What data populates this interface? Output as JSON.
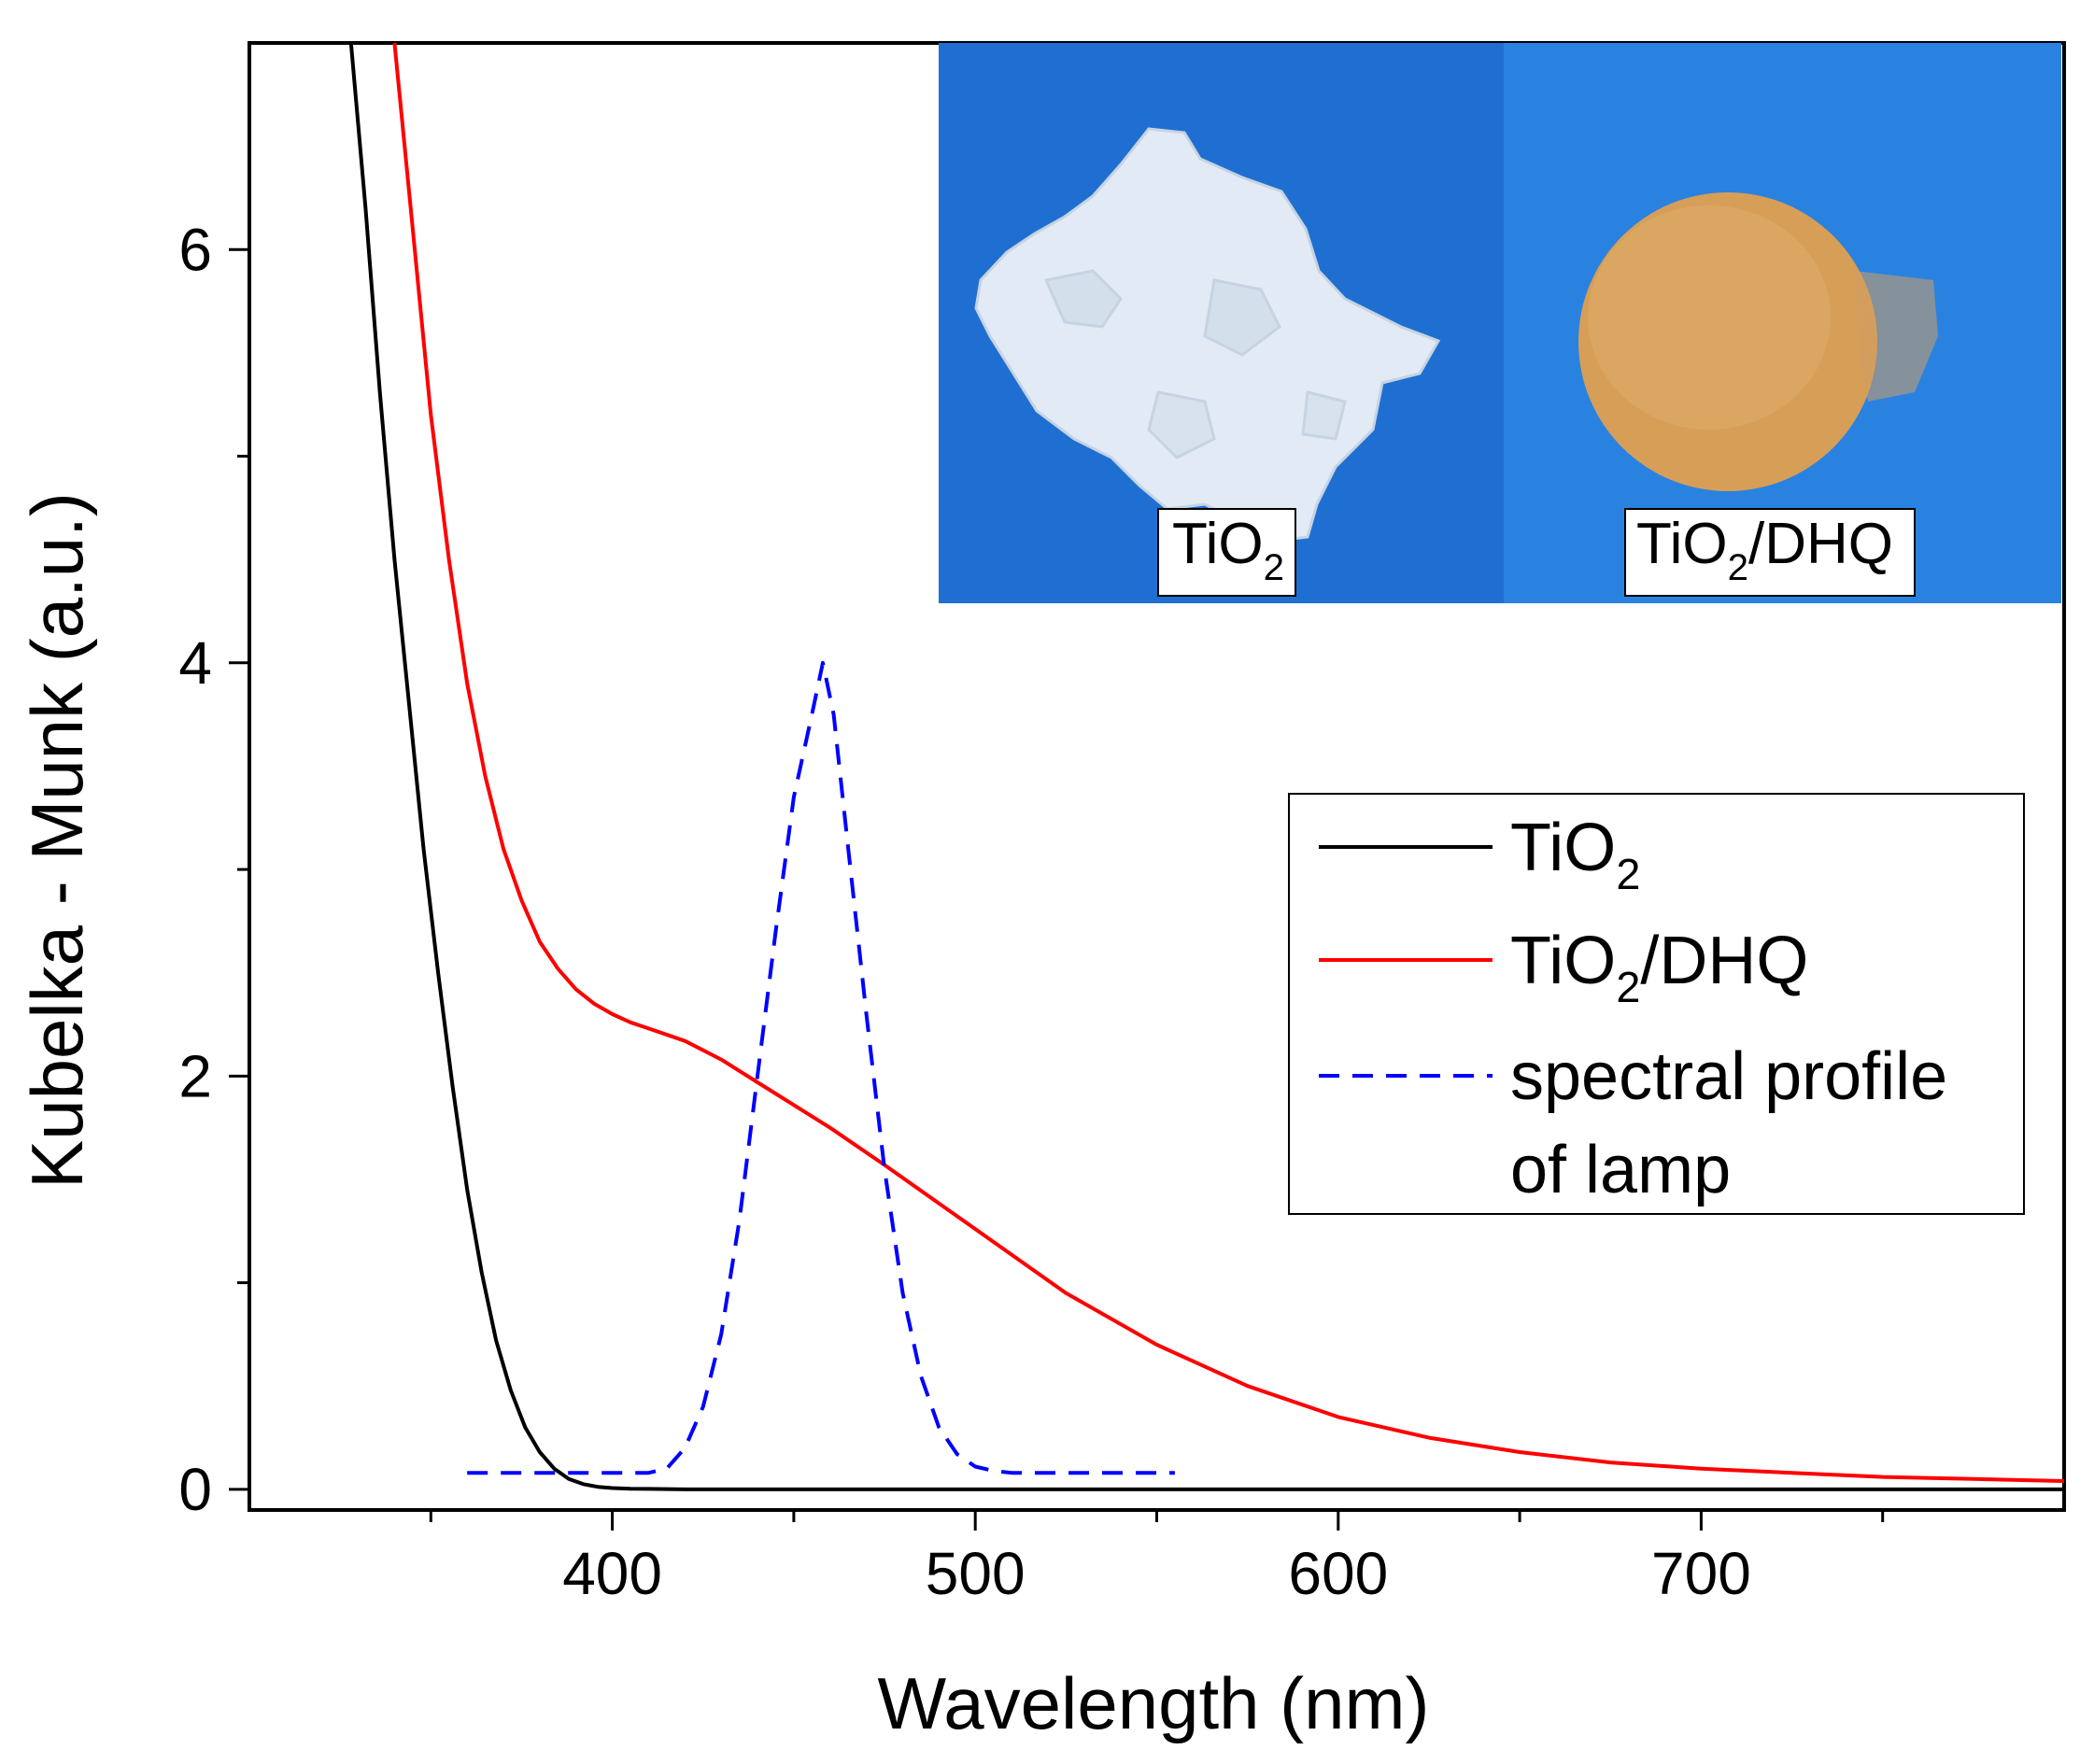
{
  "chart_data": {
    "type": "line",
    "xlabel": "Wavelength (nm)",
    "ylabel": "Kubelka - Munk (a.u.)",
    "xlim": [
      300,
      800
    ],
    "ylim": [
      -0.1,
      7
    ],
    "x_major_ticks": [
      400,
      500,
      600,
      700
    ],
    "x_minor_ticks": [
      350,
      450,
      550,
      650,
      750
    ],
    "y_major_ticks": [
      0,
      2,
      4,
      6
    ],
    "y_minor_ticks": [
      1,
      3,
      5
    ],
    "x_tick_labels": [
      "400",
      "500",
      "600",
      "700"
    ],
    "y_tick_labels": [
      "0",
      "2",
      "4",
      "6"
    ],
    "grid": false,
    "legend_position": "right",
    "series": [
      {
        "name": "TiO2",
        "name_base": "TiO",
        "name_sub": "2",
        "name_suffix": "",
        "color": "#000000",
        "dash": "solid",
        "x": [
          328,
          332,
          336,
          340,
          344,
          348,
          352,
          356,
          360,
          364,
          368,
          372,
          376,
          380,
          384,
          388,
          392,
          396,
          400,
          405,
          410,
          420,
          450,
          500,
          600,
          700,
          800
        ],
        "y": [
          7.0,
          6.2,
          5.3,
          4.5,
          3.8,
          3.1,
          2.5,
          1.95,
          1.45,
          1.05,
          0.72,
          0.48,
          0.3,
          0.18,
          0.1,
          0.05,
          0.025,
          0.012,
          0.006,
          0.003,
          0.002,
          0.0,
          0.0,
          0.0,
          0.0,
          0.0,
          0.0
        ]
      },
      {
        "name": "TiO2/DHQ",
        "name_base": "TiO",
        "name_sub": "2",
        "name_suffix": "/DHQ",
        "color": "#ff0000",
        "dash": "solid",
        "x": [
          340,
          345,
          350,
          355,
          360,
          365,
          370,
          375,
          380,
          385,
          390,
          395,
          400,
          405,
          410,
          420,
          430,
          440,
          450,
          460,
          475,
          500,
          525,
          550,
          575,
          600,
          625,
          650,
          675,
          700,
          725,
          750,
          775,
          800
        ],
        "y": [
          7.0,
          6.1,
          5.2,
          4.5,
          3.9,
          3.45,
          3.1,
          2.85,
          2.65,
          2.52,
          2.42,
          2.35,
          2.3,
          2.26,
          2.23,
          2.17,
          2.08,
          1.97,
          1.86,
          1.75,
          1.57,
          1.26,
          0.95,
          0.7,
          0.5,
          0.35,
          0.25,
          0.18,
          0.13,
          0.1,
          0.08,
          0.06,
          0.05,
          0.04
        ]
      },
      {
        "name": "spectral profile of lamp",
        "name_line1": "spectral profile",
        "name_line2": "of lamp",
        "color": "#0000ff",
        "dash": "dashed",
        "x": [
          360,
          400,
          410,
          415,
          420,
          425,
          430,
          435,
          440,
          445,
          450,
          455,
          458,
          461,
          465,
          470,
          475,
          480,
          485,
          490,
          495,
          500,
          505,
          510,
          520,
          540,
          555
        ],
        "y": [
          0.08,
          0.08,
          0.08,
          0.1,
          0.2,
          0.4,
          0.75,
          1.3,
          2.0,
          2.7,
          3.35,
          3.75,
          4.0,
          3.75,
          3.1,
          2.3,
          1.55,
          0.95,
          0.55,
          0.3,
          0.17,
          0.11,
          0.09,
          0.08,
          0.08,
          0.08,
          0.08
        ]
      }
    ]
  },
  "inset": {
    "left_label_base": "TiO",
    "left_label_sub": "2",
    "right_label_base": "TiO",
    "right_label_sub": "2",
    "right_label_suffix": "/DHQ",
    "bg_left": "#1f6fd2",
    "bg_right": "#2a82e0",
    "left_powder_color": "#dfe9f3",
    "right_powder_color": "#d7a15a"
  }
}
